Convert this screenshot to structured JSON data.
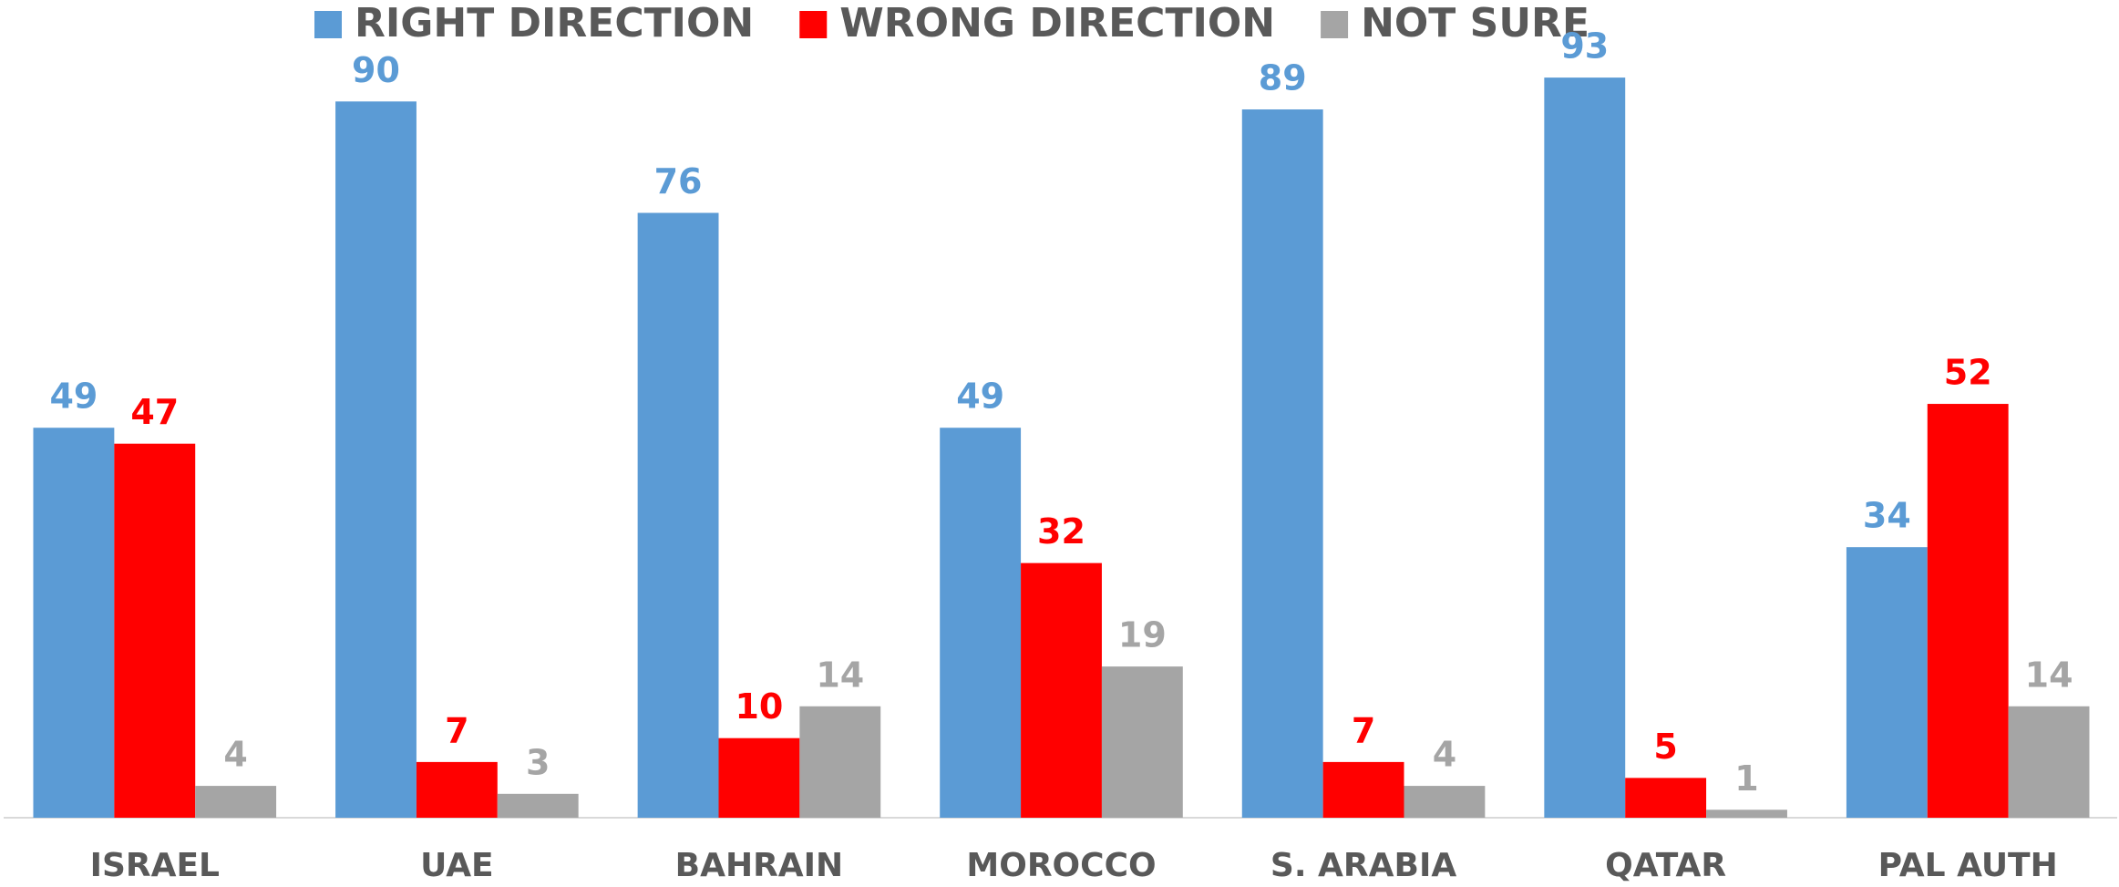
{
  "chart_data": {
    "type": "bar",
    "categories": [
      "ISRAEL",
      "UAE",
      "BAHRAIN",
      "MOROCCO",
      "S. ARABIA",
      "QATAR",
      "PAL AUTH"
    ],
    "series": [
      {
        "name": "RIGHT DIRECTION",
        "color": "#5b9bd5",
        "values": [
          49,
          90,
          76,
          49,
          89,
          93,
          34
        ]
      },
      {
        "name": "WRONG DIRECTION",
        "color": "#ff0000",
        "values": [
          47,
          7,
          10,
          32,
          7,
          5,
          52
        ]
      },
      {
        "name": "NOT SURE",
        "color": "#a5a5a5",
        "values": [
          4,
          3,
          14,
          19,
          4,
          1,
          14
        ]
      }
    ],
    "ylim": [
      0,
      100
    ],
    "legend": "top",
    "grid": false
  }
}
